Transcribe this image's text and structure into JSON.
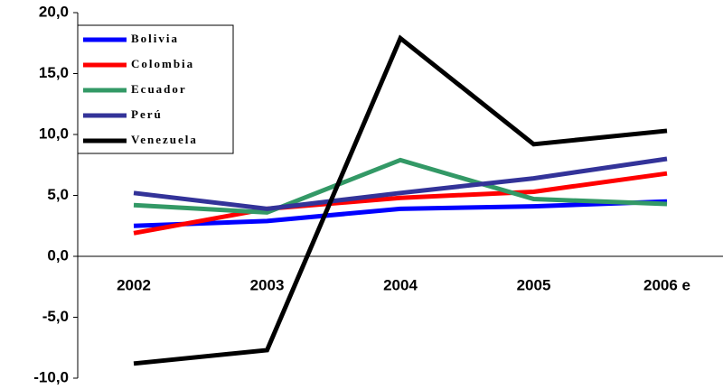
{
  "chart_data": {
    "type": "line",
    "categories": [
      "2002",
      "2003",
      "2004",
      "2005",
      "2006 e"
    ],
    "series": [
      {
        "name": "Bolivia",
        "color": "#0000ff",
        "values": [
          2.5,
          2.9,
          3.9,
          4.1,
          4.5
        ]
      },
      {
        "name": "Colombia",
        "color": "#ff0000",
        "values": [
          1.9,
          3.9,
          4.8,
          5.3,
          6.8
        ]
      },
      {
        "name": "Ecuador",
        "color": "#339966",
        "values": [
          4.2,
          3.6,
          7.9,
          4.7,
          4.3
        ]
      },
      {
        "name": "Perú",
        "color": "#333399",
        "values": [
          5.2,
          3.9,
          5.2,
          6.4,
          8.0
        ]
      },
      {
        "name": "Venezuela",
        "color": "#000000",
        "values": [
          -8.8,
          -7.7,
          17.9,
          9.2,
          10.3
        ]
      }
    ],
    "ylim": [
      -10,
      20
    ],
    "yticks": [
      {
        "value": -10,
        "label": "-10,0"
      },
      {
        "value": -5,
        "label": "-5,0"
      },
      {
        "value": 0,
        "label": "0,0"
      },
      {
        "value": 5,
        "label": "5,0"
      },
      {
        "value": 10,
        "label": "10,0"
      },
      {
        "value": 15,
        "label": "15,0"
      },
      {
        "value": 20,
        "label": "20,0"
      }
    ],
    "grid": false,
    "legend": "upper-left"
  }
}
